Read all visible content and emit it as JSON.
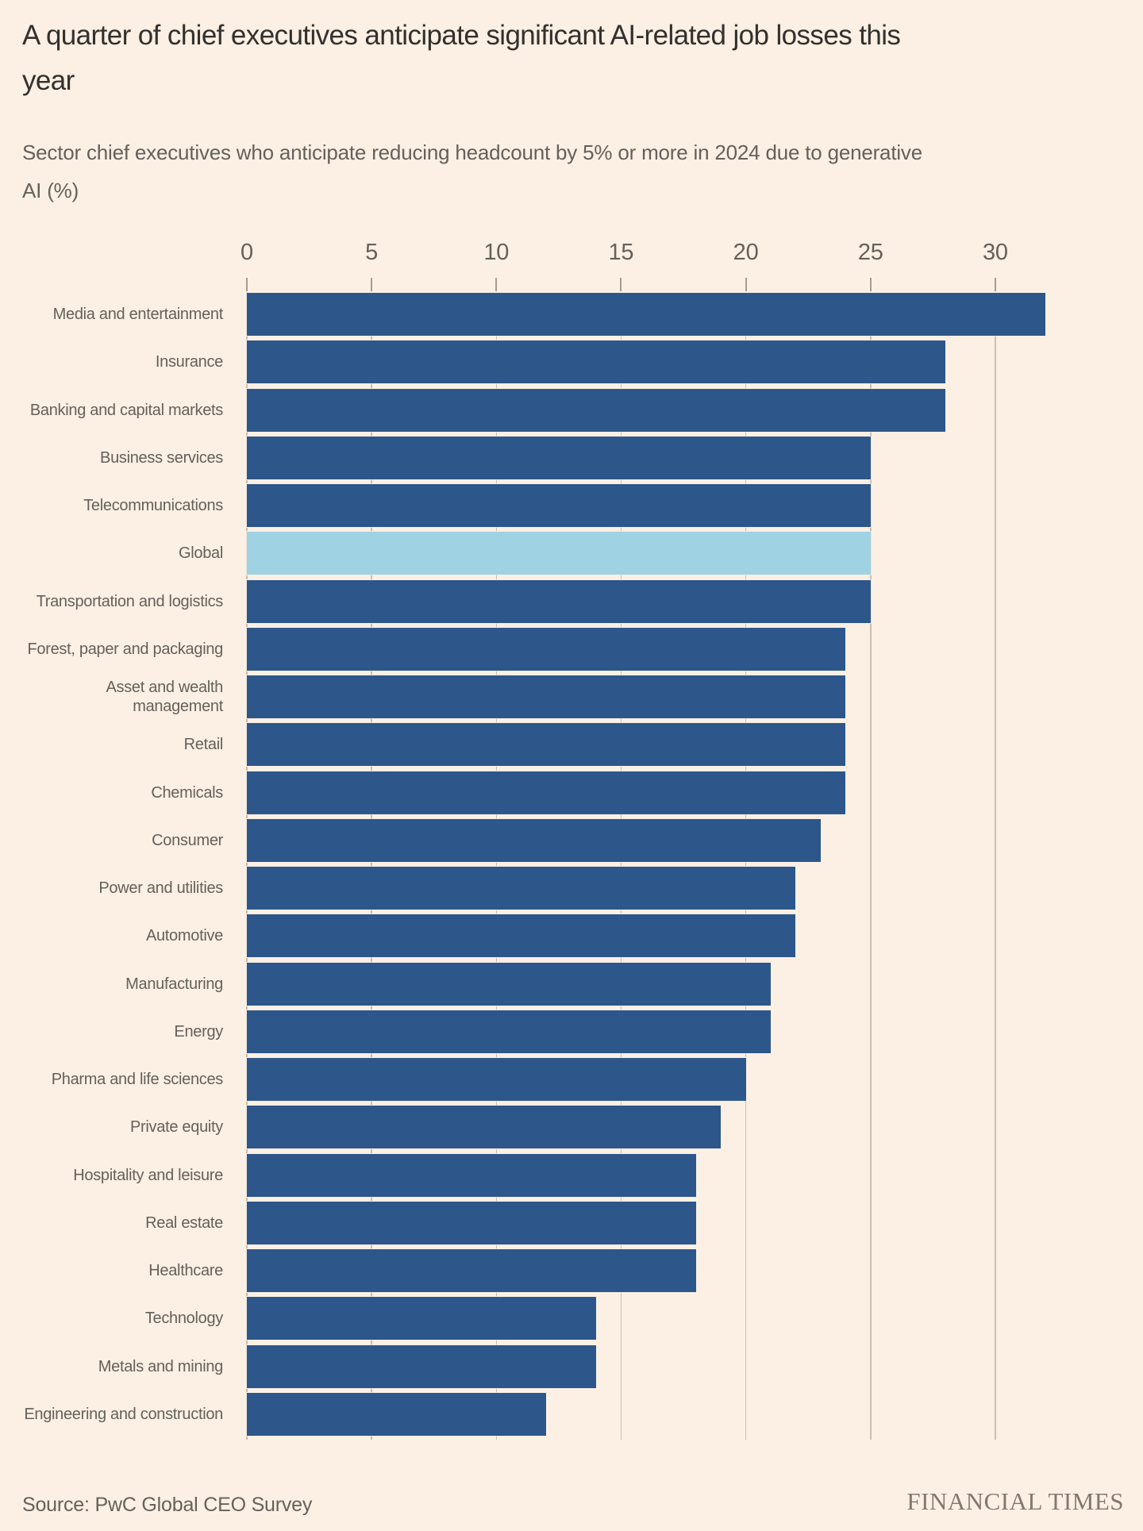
{
  "header": {
    "title": "A quarter of chief executives anticipate significant AI-related job losses this\nyear",
    "subtitle": "Sector chief executives who anticipate reducing headcount by 5% or more in 2024 due to generative\nAI (%)"
  },
  "footer": {
    "source": "Source: PwC Global CEO Survey",
    "brand": "FINANCIAL TIMES"
  },
  "colors": {
    "background": "#FBF0E3",
    "bar": "#2D568B",
    "bar_highlight": "#9FD2E3",
    "gridline": "#C9BFB3",
    "tick": "#A59C91",
    "title_text": "#33302E",
    "body_text": "#66605B",
    "brand_text": "#82786F"
  },
  "chart_data": {
    "type": "bar",
    "orientation": "horizontal",
    "title": "A quarter of chief executives anticipate significant AI-related job losses this year",
    "subtitle": "Sector chief executives who anticipate reducing headcount by 5% or more in 2024 due to generative AI (%)",
    "xlabel": "",
    "ylabel": "",
    "unit": "%",
    "axis": {
      "position": "top",
      "min": 0,
      "tick_max": 30,
      "tick_step": 5,
      "ticks": [
        0,
        5,
        10,
        15,
        20,
        25,
        30
      ],
      "grid": true
    },
    "highlight": {
      "category": "Global",
      "color": "#9FD2E3"
    },
    "categories": [
      "Media and entertainment",
      "Insurance",
      "Banking and capital markets",
      "Business services",
      "Telecommunications",
      "Global",
      "Transportation and logistics",
      "Forest, paper and packaging",
      "Asset and wealth\nmanagement",
      "Retail",
      "Chemicals",
      "Consumer",
      "Power and utilities",
      "Automotive",
      "Manufacturing",
      "Energy",
      "Pharma and life sciences",
      "Private equity",
      "Hospitality and leisure",
      "Real estate",
      "Healthcare",
      "Technology",
      "Metals and mining",
      "Engineering and construction"
    ],
    "values": [
      32,
      28,
      28,
      25,
      25,
      25,
      25,
      24,
      24,
      24,
      24,
      23,
      22,
      22,
      21,
      21,
      20,
      19,
      18,
      18,
      18,
      14,
      14,
      12
    ]
  }
}
